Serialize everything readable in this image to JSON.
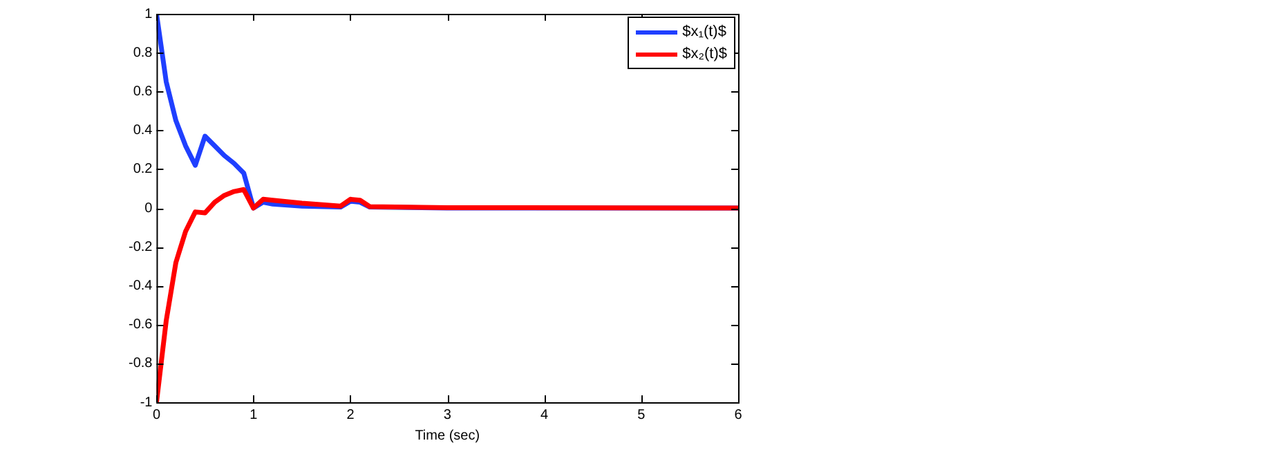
{
  "chart_data": {
    "type": "line",
    "xlabel": "Time (sec)",
    "xlim": [
      0,
      6
    ],
    "xticks": [
      0,
      1,
      2,
      3,
      4,
      5,
      6
    ],
    "ylim": [
      -1,
      1
    ],
    "yticks": [
      -1,
      -0.8,
      -0.6,
      -0.4,
      -0.2,
      0,
      0.2,
      0.4,
      0.6,
      0.8,
      1
    ],
    "grid": false,
    "legend": "top right",
    "marker": "none",
    "line_style": "solid",
    "series": [
      {
        "name": "$x₁(t)$",
        "color": "#1f3fff",
        "x": [
          0,
          0.1,
          0.2,
          0.3,
          0.4,
          0.5,
          0.6,
          0.7,
          0.8,
          0.9,
          1.0,
          1.1,
          1.2,
          1.5,
          1.9,
          2.0,
          2.1,
          2.2,
          3,
          6
        ],
        "values": [
          1,
          0.65,
          0.45,
          0.32,
          0.22,
          0.37,
          0.32,
          0.27,
          0.23,
          0.18,
          0.0,
          0.03,
          0.02,
          0.01,
          0.005,
          0.035,
          0.03,
          0.005,
          0,
          0
        ]
      },
      {
        "name": "$x₂(t)$",
        "color": "#ff0000",
        "x": [
          0,
          0.1,
          0.2,
          0.3,
          0.4,
          0.5,
          0.6,
          0.7,
          0.8,
          0.9,
          1.0,
          1.1,
          1.2,
          1.5,
          1.9,
          2.0,
          2.1,
          2.2,
          3,
          6
        ],
        "values": [
          -1,
          -0.58,
          -0.28,
          -0.12,
          -0.02,
          -0.025,
          0.03,
          0.065,
          0.085,
          0.095,
          0.0,
          0.045,
          0.04,
          0.025,
          0.01,
          0.045,
          0.04,
          0.007,
          0.002,
          0
        ]
      }
    ]
  }
}
